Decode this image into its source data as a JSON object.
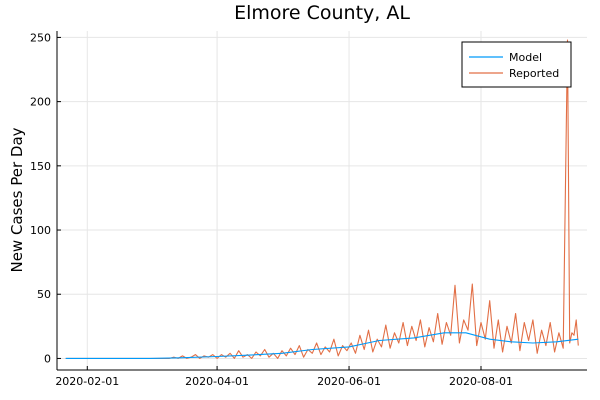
{
  "chart_data": {
    "type": "line",
    "title": "Elmore County, AL",
    "xlabel": "",
    "ylabel": "New Cases Per Day",
    "xlim": [
      "2020-01-18",
      "2020-09-19"
    ],
    "ylim": [
      -9,
      255
    ],
    "x_ticks": [
      "2020-02-01",
      "2020-04-01",
      "2020-06-01",
      "2020-08-01"
    ],
    "y_ticks": [
      0,
      50,
      100,
      150,
      200,
      250
    ],
    "grid": true,
    "legend": "top-right",
    "series": [
      {
        "name": "Model",
        "color": "#009af9",
        "points": [
          [
            "2020-01-22",
            0
          ],
          [
            "2020-02-15",
            0
          ],
          [
            "2020-03-01",
            0
          ],
          [
            "2020-03-15",
            0.5
          ],
          [
            "2020-04-01",
            1.5
          ],
          [
            "2020-04-15",
            2.5
          ],
          [
            "2020-05-01",
            4
          ],
          [
            "2020-05-15",
            7
          ],
          [
            "2020-06-01",
            9
          ],
          [
            "2020-06-15",
            14
          ],
          [
            "2020-07-01",
            16
          ],
          [
            "2020-07-15",
            20
          ],
          [
            "2020-07-25",
            20
          ],
          [
            "2020-08-05",
            15
          ],
          [
            "2020-08-15",
            13
          ],
          [
            "2020-08-25",
            12
          ],
          [
            "2020-09-05",
            13
          ],
          [
            "2020-09-15",
            15
          ]
        ]
      },
      {
        "name": "Reported",
        "color": "#e26f46",
        "points": [
          [
            "2020-01-22",
            0
          ],
          [
            "2020-02-15",
            0
          ],
          [
            "2020-03-10",
            0
          ],
          [
            "2020-03-12",
            1
          ],
          [
            "2020-03-14",
            0
          ],
          [
            "2020-03-16",
            2
          ],
          [
            "2020-03-18",
            0
          ],
          [
            "2020-03-20",
            1
          ],
          [
            "2020-03-22",
            3
          ],
          [
            "2020-03-24",
            0
          ],
          [
            "2020-03-26",
            2
          ],
          [
            "2020-03-28",
            1
          ],
          [
            "2020-03-30",
            3
          ],
          [
            "2020-04-01",
            0
          ],
          [
            "2020-04-03",
            3
          ],
          [
            "2020-04-05",
            1
          ],
          [
            "2020-04-07",
            4
          ],
          [
            "2020-04-09",
            0
          ],
          [
            "2020-04-11",
            6
          ],
          [
            "2020-04-13",
            1
          ],
          [
            "2020-04-15",
            3
          ],
          [
            "2020-04-17",
            0
          ],
          [
            "2020-04-19",
            5
          ],
          [
            "2020-04-21",
            2
          ],
          [
            "2020-04-23",
            7
          ],
          [
            "2020-04-25",
            1
          ],
          [
            "2020-04-27",
            4
          ],
          [
            "2020-04-29",
            0
          ],
          [
            "2020-05-01",
            6
          ],
          [
            "2020-05-03",
            2
          ],
          [
            "2020-05-05",
            8
          ],
          [
            "2020-05-07",
            3
          ],
          [
            "2020-05-09",
            10
          ],
          [
            "2020-05-11",
            1
          ],
          [
            "2020-05-13",
            7
          ],
          [
            "2020-05-15",
            4
          ],
          [
            "2020-05-17",
            12
          ],
          [
            "2020-05-19",
            3
          ],
          [
            "2020-05-21",
            9
          ],
          [
            "2020-05-23",
            5
          ],
          [
            "2020-05-25",
            15
          ],
          [
            "2020-05-27",
            2
          ],
          [
            "2020-05-29",
            10
          ],
          [
            "2020-05-31",
            6
          ],
          [
            "2020-06-02",
            12
          ],
          [
            "2020-06-04",
            4
          ],
          [
            "2020-06-06",
            18
          ],
          [
            "2020-06-08",
            7
          ],
          [
            "2020-06-10",
            22
          ],
          [
            "2020-06-12",
            5
          ],
          [
            "2020-06-14",
            15
          ],
          [
            "2020-06-16",
            9
          ],
          [
            "2020-06-18",
            26
          ],
          [
            "2020-06-20",
            8
          ],
          [
            "2020-06-22",
            20
          ],
          [
            "2020-06-24",
            12
          ],
          [
            "2020-06-26",
            28
          ],
          [
            "2020-06-28",
            10
          ],
          [
            "2020-06-30",
            25
          ],
          [
            "2020-07-02",
            14
          ],
          [
            "2020-07-04",
            30
          ],
          [
            "2020-07-06",
            9
          ],
          [
            "2020-07-08",
            24
          ],
          [
            "2020-07-10",
            13
          ],
          [
            "2020-07-12",
            35
          ],
          [
            "2020-07-14",
            11
          ],
          [
            "2020-07-16",
            28
          ],
          [
            "2020-07-18",
            18
          ],
          [
            "2020-07-20",
            57
          ],
          [
            "2020-07-22",
            12
          ],
          [
            "2020-07-24",
            30
          ],
          [
            "2020-07-26",
            22
          ],
          [
            "2020-07-28",
            58
          ],
          [
            "2020-07-30",
            10
          ],
          [
            "2020-08-01",
            28
          ],
          [
            "2020-08-03",
            15
          ],
          [
            "2020-08-05",
            45
          ],
          [
            "2020-08-07",
            8
          ],
          [
            "2020-08-09",
            30
          ],
          [
            "2020-08-11",
            5
          ],
          [
            "2020-08-13",
            25
          ],
          [
            "2020-08-15",
            12
          ],
          [
            "2020-08-17",
            35
          ],
          [
            "2020-08-19",
            6
          ],
          [
            "2020-08-21",
            28
          ],
          [
            "2020-08-23",
            14
          ],
          [
            "2020-08-25",
            30
          ],
          [
            "2020-08-27",
            4
          ],
          [
            "2020-08-29",
            22
          ],
          [
            "2020-08-31",
            10
          ],
          [
            "2020-09-02",
            28
          ],
          [
            "2020-09-04",
            5
          ],
          [
            "2020-09-06",
            20
          ],
          [
            "2020-09-08",
            8
          ],
          [
            "2020-09-10",
            248
          ],
          [
            "2020-09-11",
            12
          ],
          [
            "2020-09-12",
            20
          ],
          [
            "2020-09-13",
            18
          ],
          [
            "2020-09-14",
            30
          ],
          [
            "2020-09-15",
            10
          ]
        ]
      }
    ]
  }
}
